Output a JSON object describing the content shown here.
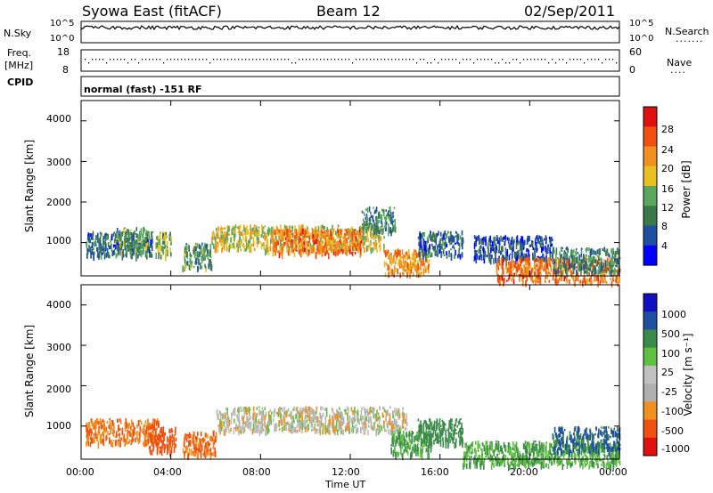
{
  "header": {
    "station": "Syowa East (fitACF)",
    "beam": "Beam 12",
    "date": "02/Sep/2011"
  },
  "nsky_panel": {
    "left_label": "N.Sky",
    "right_label": "N.Search",
    "left_ticks": [
      "10^5",
      "10^0"
    ],
    "right_ticks": [
      "10^5",
      "10^0"
    ]
  },
  "freq_panel": {
    "left_label_1": "Freq.",
    "left_label_2": "[MHz]",
    "left_ticks": [
      "18",
      "8"
    ],
    "right_label": "Nave",
    "right_ticks": [
      "60",
      "0"
    ],
    "cpid_label": "CPID"
  },
  "cpid_text": "normal (fast) -151 RF",
  "power_panel": {
    "ylabel": "Slant Range [km]",
    "yticks": [
      "4000",
      "3000",
      "2000",
      "1000"
    ],
    "colorbar_label": "Power [dB]",
    "colorbar_ticks": [
      "28",
      "24",
      "20",
      "16",
      "12",
      "8",
      "4"
    ]
  },
  "velocity_panel": {
    "ylabel": "Slant Range [km]",
    "yticks": [
      "4000",
      "3000",
      "2000",
      "1000"
    ],
    "colorbar_label": "Velocity [m s⁻¹]",
    "colorbar_ticks": [
      "1000",
      "500",
      "100",
      "25",
      "-25",
      "-100",
      "-500",
      "-1000"
    ]
  },
  "xaxis": {
    "label": "Time UT",
    "ticks": [
      "00:00",
      "04:00",
      "08:00",
      "12:00",
      "16:00",
      "20:00",
      "00:00"
    ]
  },
  "colors": {
    "power_scale": [
      "#0000ff",
      "#1e4fa0",
      "#3a7a4a",
      "#5aa860",
      "#e8c020",
      "#f09020",
      "#f05010",
      "#e01010"
    ],
    "velocity_scale": [
      "#e01010",
      "#f05010",
      "#f09020",
      "#b0b0b0",
      "#c0c0c0",
      "#60c040",
      "#3a8a4a",
      "#1e4fa0",
      "#1010c0"
    ]
  },
  "chart_data": {
    "type": "heatmap",
    "x_range_hours": [
      0,
      24
    ],
    "y_range_km": [
      180,
      4500
    ],
    "power_bands": [
      {
        "t_start": 0.2,
        "t_end": 3.2,
        "range_center_km": 1000,
        "power_db": 8
      },
      {
        "t_start": 1.5,
        "t_end": 3.0,
        "range_center_km": 1100,
        "power_db": 12
      },
      {
        "t_start": 3.3,
        "t_end": 4.0,
        "range_center_km": 1000,
        "power_db": 14
      },
      {
        "t_start": 4.5,
        "t_end": 5.8,
        "range_center_km": 700,
        "power_db": 12
      },
      {
        "t_start": 5.8,
        "t_end": 13.5,
        "range_center_km": 1150,
        "power_db": 18
      },
      {
        "t_start": 8.5,
        "t_end": 12.5,
        "range_center_km": 1050,
        "power_db": 24
      },
      {
        "t_start": 12.5,
        "t_end": 14.0,
        "range_center_km": 1600,
        "power_db": 10
      },
      {
        "t_start": 13.5,
        "t_end": 15.5,
        "range_center_km": 550,
        "power_db": 22
      },
      {
        "t_start": 15.0,
        "t_end": 17.0,
        "range_center_km": 1000,
        "power_db": 8
      },
      {
        "t_start": 17.5,
        "t_end": 21.0,
        "range_center_km": 900,
        "power_db": 6
      },
      {
        "t_start": 18.5,
        "t_end": 24.0,
        "range_center_km": 350,
        "power_db": 24
      },
      {
        "t_start": 21.0,
        "t_end": 24.0,
        "range_center_km": 600,
        "power_db": 10
      }
    ],
    "velocity_bands": [
      {
        "t_start": 0.2,
        "t_end": 3.5,
        "range_center_km": 900,
        "velocity_ms": -100
      },
      {
        "t_start": 3.0,
        "t_end": 4.2,
        "range_center_km": 700,
        "velocity_ms": -200
      },
      {
        "t_start": 4.5,
        "t_end": 6.0,
        "range_center_km": 600,
        "velocity_ms": -100
      },
      {
        "t_start": 6.0,
        "t_end": 14.5,
        "range_center_km": 1200,
        "velocity_ms": 0
      },
      {
        "t_start": 13.8,
        "t_end": 15.6,
        "range_center_km": 600,
        "velocity_ms": 100
      },
      {
        "t_start": 15.0,
        "t_end": 17.0,
        "range_center_km": 900,
        "velocity_ms": 300
      },
      {
        "t_start": 17.0,
        "t_end": 24.0,
        "range_center_km": 350,
        "velocity_ms": 100
      },
      {
        "t_start": 21.0,
        "t_end": 24.0,
        "range_center_km": 700,
        "velocity_ms": 600
      }
    ]
  }
}
